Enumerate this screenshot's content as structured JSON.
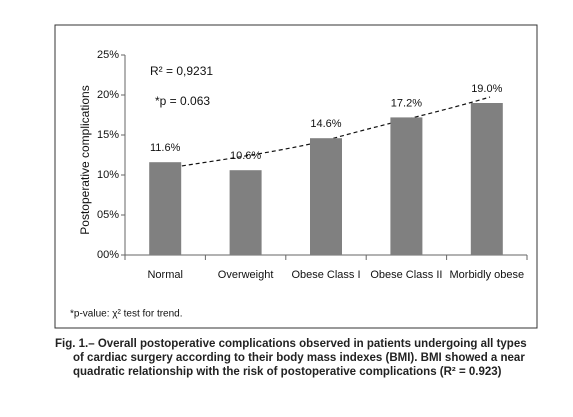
{
  "chart_data": {
    "type": "bar",
    "y_label": "Postoperative complications",
    "categories": [
      "Normal",
      "Overweight",
      "Obese Class I",
      "Obese Class II",
      "Morbidly obese"
    ],
    "values": [
      11.6,
      10.6,
      14.6,
      17.2,
      19.0
    ],
    "value_labels": [
      "11.6%",
      "10.6%",
      "14.6%",
      "17.2%",
      "19.0%"
    ],
    "color": "#808080",
    "ylim": [
      0,
      25
    ],
    "yticks": [
      {
        "value": 0,
        "label": "00%"
      },
      {
        "value": 5,
        "label": "05%"
      },
      {
        "value": 10,
        "label": "10%"
      },
      {
        "value": 15,
        "label": "15%"
      },
      {
        "value": 20,
        "label": "20%"
      },
      {
        "value": 25,
        "label": "25%"
      }
    ],
    "annotations": [
      "R² = 0,9231",
      "*p = 0.063"
    ],
    "footnote": "*p-value: χ² test for trend.",
    "caption": [
      "Fig. 1.– Overall postoperative complications observed in patients undergoing all types",
      "of cardiac surgery according to their body mass indexes (BMI). BMI showed a near",
      "quadratic relationship with the risk of postoperative complications (R² = 0.923)"
    ]
  }
}
